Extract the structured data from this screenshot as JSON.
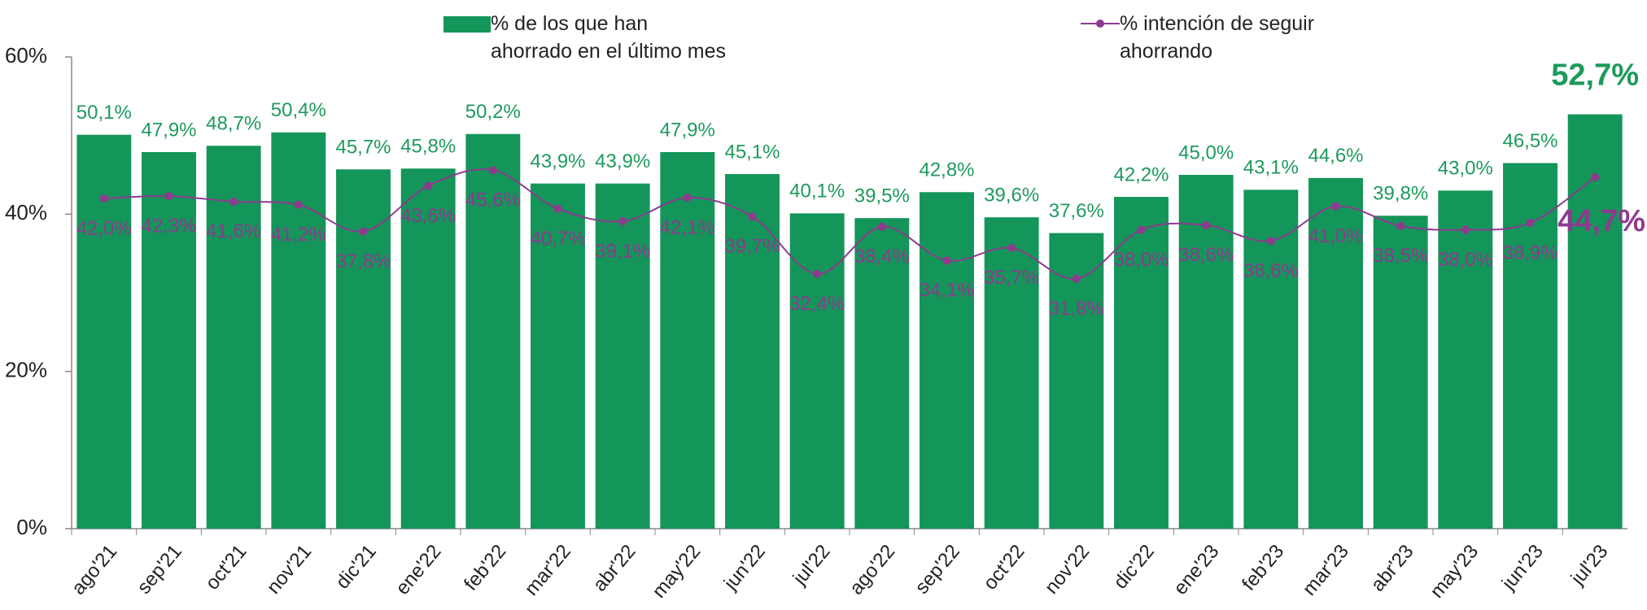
{
  "chart_data": {
    "type": "bar-line",
    "categories": [
      "ago'21",
      "sep'21",
      "oct'21",
      "nov'21",
      "dic'21",
      "ene'22",
      "feb'22",
      "mar'22",
      "abr'22",
      "may'22",
      "jun'22",
      "jul'22",
      "ago'22",
      "sep'22",
      "oct'22",
      "nov'22",
      "dic'22",
      "ene'23",
      "feb'23",
      "mar'23",
      "abr'23",
      "may'23",
      "jun'23",
      "jul'23"
    ],
    "series": [
      {
        "name": "% de los que han ahorrado en el último mes",
        "type": "bar",
        "color": "#14955a",
        "values": [
          50.1,
          47.9,
          48.7,
          50.4,
          45.7,
          45.8,
          50.2,
          43.9,
          43.9,
          47.9,
          45.1,
          40.1,
          39.5,
          42.8,
          39.6,
          37.6,
          42.2,
          45.0,
          43.1,
          44.6,
          39.8,
          43.0,
          46.5,
          52.7
        ],
        "value_labels": [
          "50,1%",
          "47,9%",
          "48,7%",
          "50,4%",
          "45,7%",
          "45,8%",
          "50,2%",
          "43,9%",
          "43,9%",
          "47,9%",
          "45,1%",
          "40,1%",
          "39,5%",
          "42,8%",
          "39,6%",
          "37,6%",
          "42,2%",
          "45,0%",
          "43,1%",
          "44,6%",
          "39,8%",
          "43,0%",
          "46,5%",
          "52,7%"
        ]
      },
      {
        "name": "% intención de seguir ahorrando",
        "type": "line",
        "color": "#8e3a8f",
        "values": [
          42.0,
          42.3,
          41.6,
          41.2,
          37.8,
          43.6,
          45.6,
          40.7,
          39.1,
          42.1,
          39.7,
          32.4,
          38.4,
          34.1,
          35.7,
          31.8,
          38.0,
          38.6,
          36.6,
          41.0,
          38.5,
          38.0,
          38.9,
          44.7
        ],
        "value_labels": [
          "42,0%",
          "42,3%",
          "41,6%",
          "41,2%",
          "37,8%",
          "43,6%",
          "45,6%",
          "40,7%",
          "39,1%",
          "42,1%",
          "39,7%",
          "32,4%",
          "38,4%",
          "34,1%",
          "35,7%",
          "31,8%",
          "38,0%",
          "38,6%",
          "36,6%",
          "41,0%",
          "38,5%",
          "38,0%",
          "38,9%",
          "44,7%"
        ]
      }
    ],
    "ylim": [
      0,
      60
    ],
    "yticks": [
      {
        "value": 0,
        "label": "0%"
      },
      {
        "value": 20,
        "label": "20%"
      },
      {
        "value": 40,
        "label": "40%"
      },
      {
        "value": 60,
        "label": "60%"
      }
    ]
  }
}
